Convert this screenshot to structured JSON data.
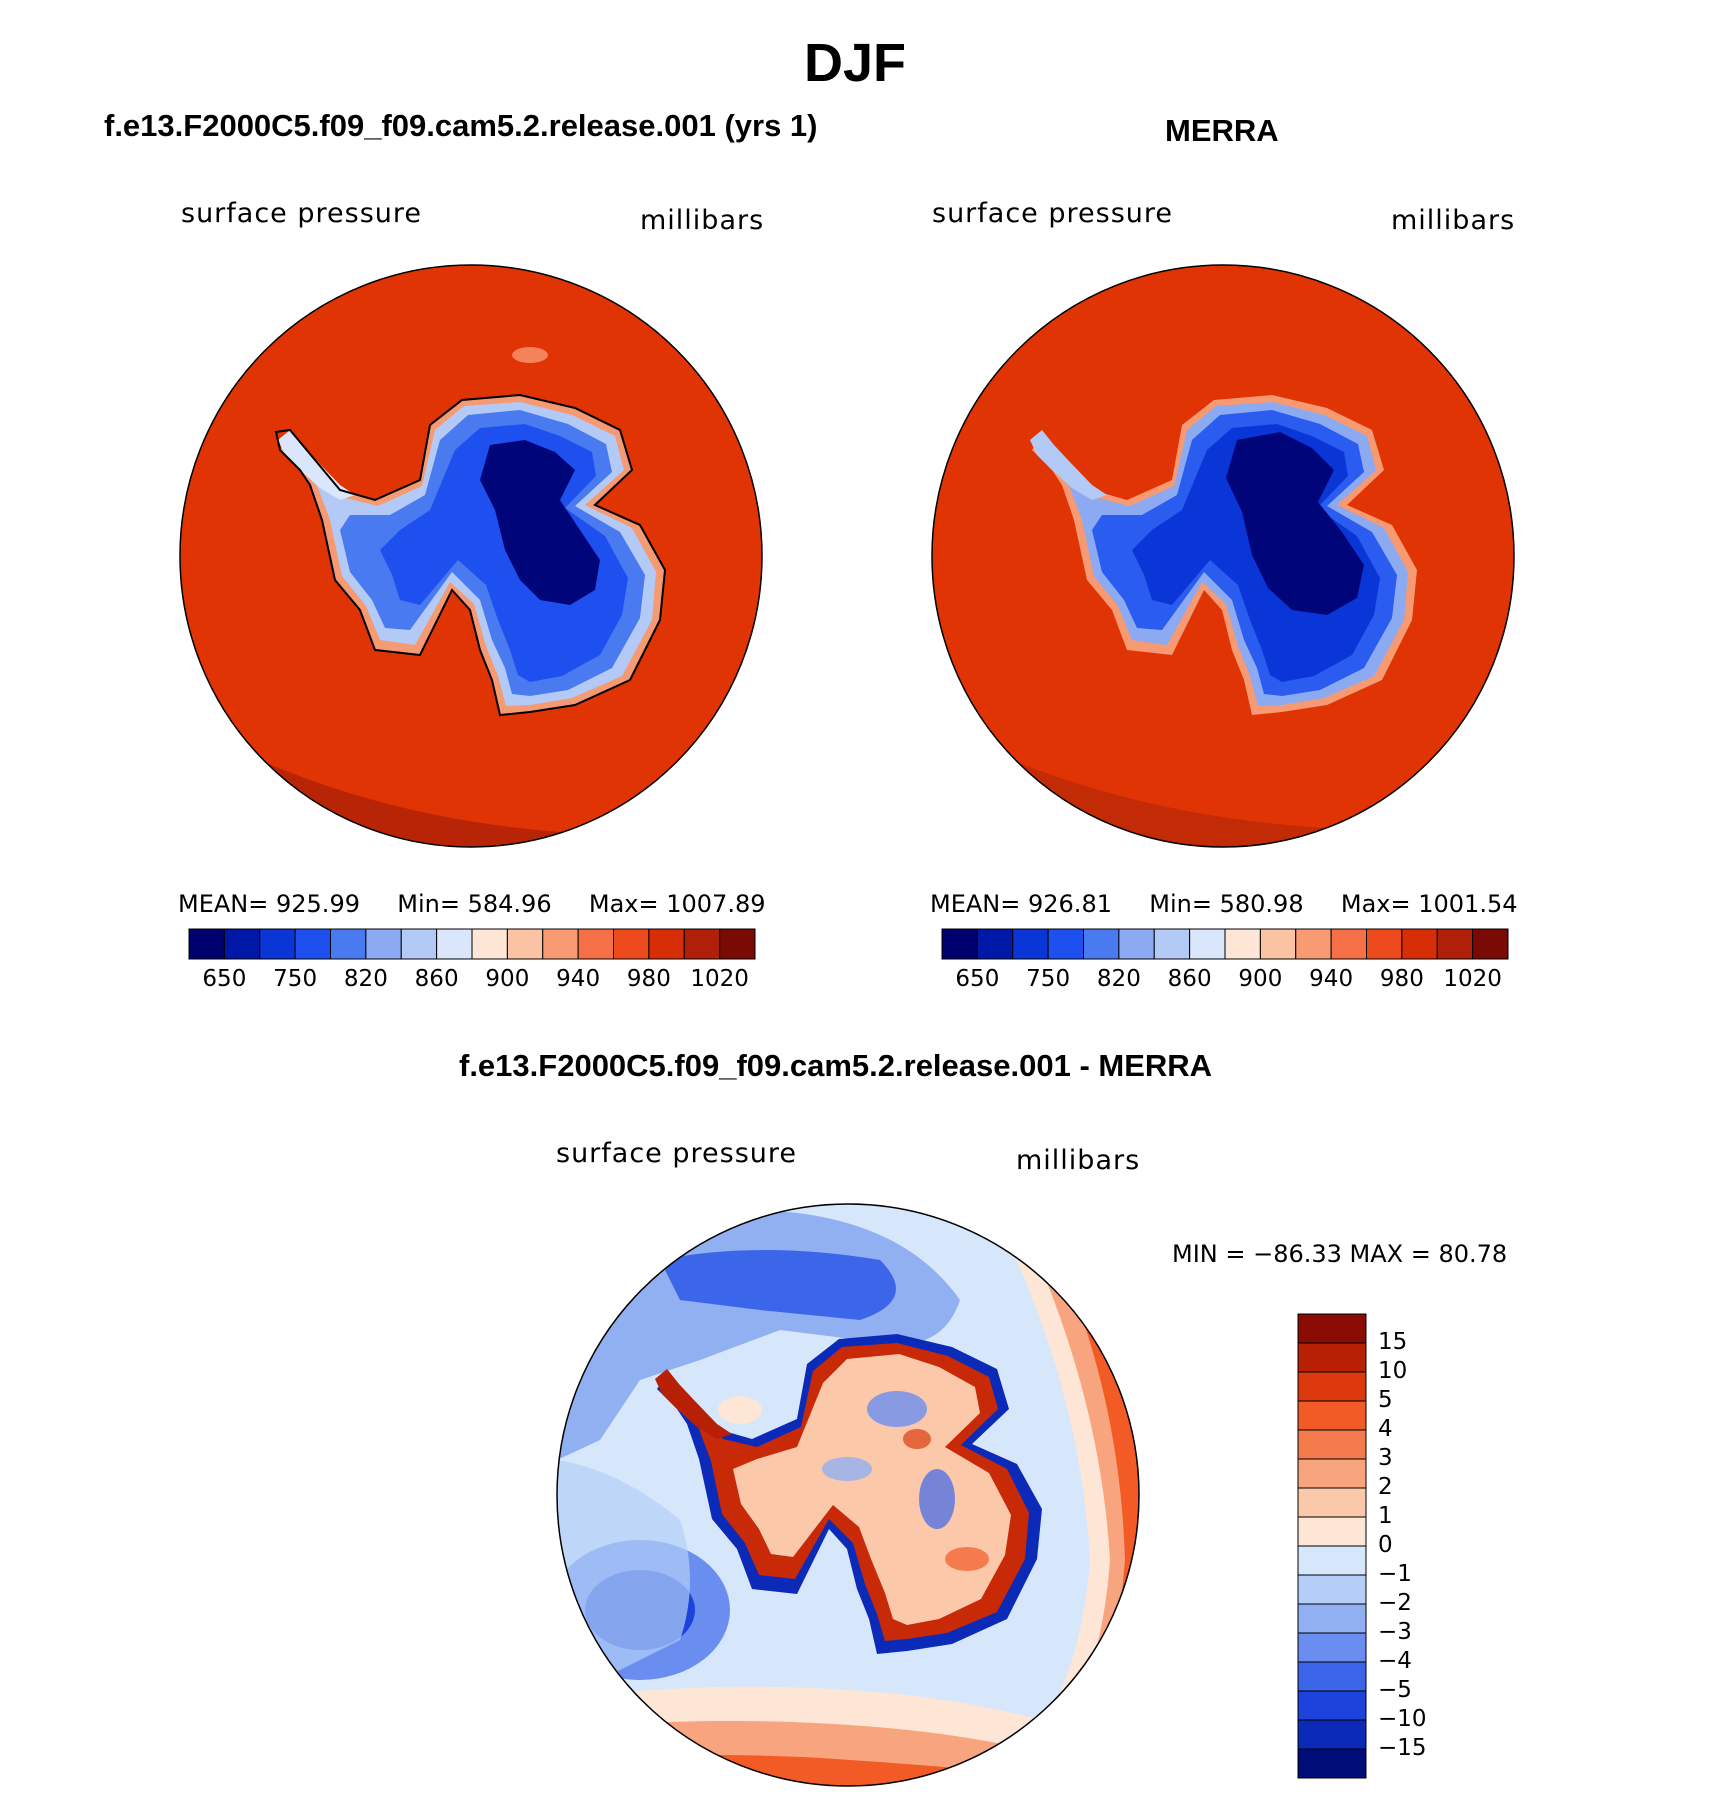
{
  "figure": {
    "title": "DJF"
  },
  "chart_data": [
    {
      "type": "heatmap",
      "projection": "south-polar-stereographic",
      "title": "f.e13.F2000C5.f09_f09.cam5.2.release.001 (yrs 1)",
      "variable_label": "surface pressure",
      "units_label": "millibars",
      "stats": {
        "mean_label": "MEAN=",
        "mean": "925.99",
        "min_label": "Min=",
        "min": "584.96",
        "max_label": "Max=",
        "max": "1007.89"
      },
      "colorbar": {
        "orientation": "horizontal",
        "colors": [
          "#00006e",
          "#0018a8",
          "#0a36d8",
          "#1e50f0",
          "#4a7af0",
          "#8caaf2",
          "#b4caf6",
          "#dae6fb",
          "#fde6d6",
          "#fcc2a4",
          "#f89a72",
          "#f57046",
          "#ed4a1e",
          "#d82e08",
          "#b02008",
          "#7a0a04"
        ],
        "tick_labels": [
          "650",
          "750",
          "820",
          "860",
          "900",
          "940",
          "980",
          "1020"
        ]
      }
    },
    {
      "type": "heatmap",
      "projection": "south-polar-stereographic",
      "title": "MERRA",
      "variable_label": "surface pressure",
      "units_label": "millibars",
      "stats": {
        "mean_label": "MEAN=",
        "mean": "926.81",
        "min_label": "Min=",
        "min": "580.98",
        "max_label": "Max=",
        "max": "1001.54"
      },
      "colorbar": {
        "orientation": "horizontal",
        "colors": [
          "#00006e",
          "#0018a8",
          "#0a36d8",
          "#1e50f0",
          "#4a7af0",
          "#8caaf2",
          "#b4caf6",
          "#dae6fb",
          "#fde6d6",
          "#fcc2a4",
          "#f89a72",
          "#f57046",
          "#ed4a1e",
          "#d82e08",
          "#b02008",
          "#7a0a04"
        ],
        "tick_labels": [
          "650",
          "750",
          "820",
          "860",
          "900",
          "940",
          "980",
          "1020"
        ]
      }
    },
    {
      "type": "heatmap",
      "projection": "south-polar-stereographic",
      "title": "f.e13.F2000C5.f09_f09.cam5.2.release.001 - MERRA",
      "variable_label": "surface pressure",
      "units_label": "millibars",
      "stats_text": "MIN = −86.33 MAX =   80.78",
      "colorbar": {
        "orientation": "vertical",
        "colors_top_to_bottom": [
          "#8a0a04",
          "#b82006",
          "#dc3a0e",
          "#f25a26",
          "#f47c4c",
          "#f8a47e",
          "#fcc8aa",
          "#fde6d6",
          "#d6e6fb",
          "#b4cef7",
          "#90b0f2",
          "#6a8ef0",
          "#3c66ea",
          "#1c44dc",
          "#0c2ab8",
          "#000c78"
        ],
        "tick_labels_top_to_bottom": [
          "15",
          "10",
          "5",
          "4",
          "3",
          "2",
          "1",
          "0",
          "−1",
          "−2",
          "−3",
          "−4",
          "−5",
          "−10",
          "−15"
        ]
      }
    }
  ]
}
